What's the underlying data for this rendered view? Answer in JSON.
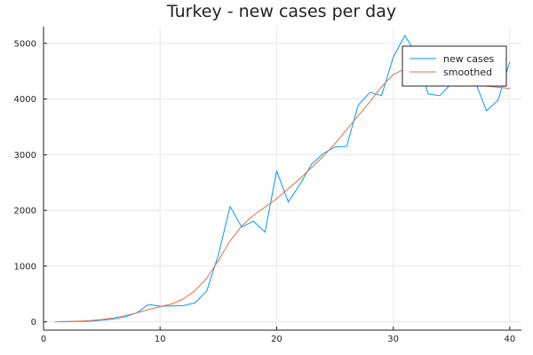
{
  "chart_data": {
    "type": "line",
    "title": "Turkey - new cases per day",
    "xlabel": "",
    "ylabel": "",
    "xlim": [
      0,
      41
    ],
    "ylim": [
      -150,
      5300
    ],
    "xticks": [
      0,
      10,
      20,
      30,
      40
    ],
    "yticks": [
      0,
      1000,
      2000,
      3000,
      4000,
      5000
    ],
    "grid": true,
    "legend": "top-right",
    "x": [
      1,
      2,
      3,
      4,
      5,
      6,
      7,
      8,
      9,
      10,
      11,
      12,
      13,
      14,
      15,
      16,
      17,
      18,
      19,
      20,
      21,
      22,
      23,
      24,
      25,
      26,
      27,
      28,
      29,
      30,
      31,
      32,
      33,
      34,
      35,
      36,
      37,
      38,
      39,
      40
    ],
    "series": [
      {
        "name": "new cases",
        "color": "#009af9",
        "values": [
          1,
          4,
          7,
          12,
          30,
          50,
          90,
          160,
          310,
          280,
          285,
          290,
          340,
          550,
          1200,
          2070,
          1700,
          1810,
          1610,
          2710,
          2150,
          2470,
          2830,
          3020,
          3140,
          3150,
          3890,
          4120,
          4060,
          4750,
          5140,
          4800,
          4090,
          4060,
          4280,
          4300,
          4330,
          3790,
          3980,
          4670
        ]
      },
      {
        "name": "smoothed",
        "color": "#e26f46",
        "values": [
          2,
          6,
          12,
          22,
          40,
          70,
          110,
          160,
          220,
          270,
          320,
          410,
          560,
          780,
          1100,
          1450,
          1720,
          1910,
          2060,
          2210,
          2390,
          2570,
          2770,
          2970,
          3200,
          3450,
          3700,
          3950,
          4220,
          4440,
          4540,
          4520,
          4460,
          4400,
          4340,
          4290,
          4250,
          4230,
          4210,
          4190
        ]
      }
    ]
  }
}
